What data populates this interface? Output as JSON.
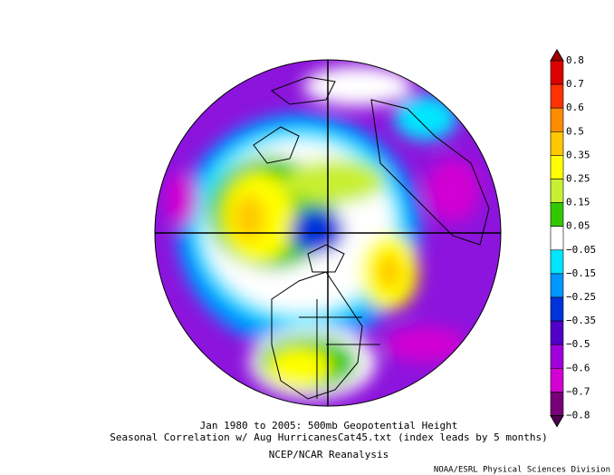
{
  "map": {
    "title_lines": [
      "Jan 1980 to 2005: 500mb Geopotential Height",
      "Seasonal Correlation w/ Aug HurricanesCat45.txt (index leads by 5 months)"
    ],
    "source": "NCEP/NCAR Reanalysis",
    "credit": "NOAA/ESRL Physical Sciences Division",
    "colorbar": {
      "labels": [
        "0.8",
        "0.7",
        "0.6",
        "0.5",
        "0.35",
        "0.25",
        "0.15",
        "0.05",
        "−0.05",
        "−0.15",
        "−0.25",
        "−0.35",
        "−0.5",
        "−0.6",
        "−0.7",
        "−0.8"
      ],
      "colors": [
        "#a00000",
        "#dc0000",
        "#ff3200",
        "#ff8c00",
        "#ffc800",
        "#ffff00",
        "#c8f032",
        "#32c800",
        "#ffffff",
        "#00e6ff",
        "#0096ff",
        "#0032dc",
        "#5000c8",
        "#a000dc",
        "#d200d2",
        "#780078",
        "#500050"
      ]
    }
  }
}
